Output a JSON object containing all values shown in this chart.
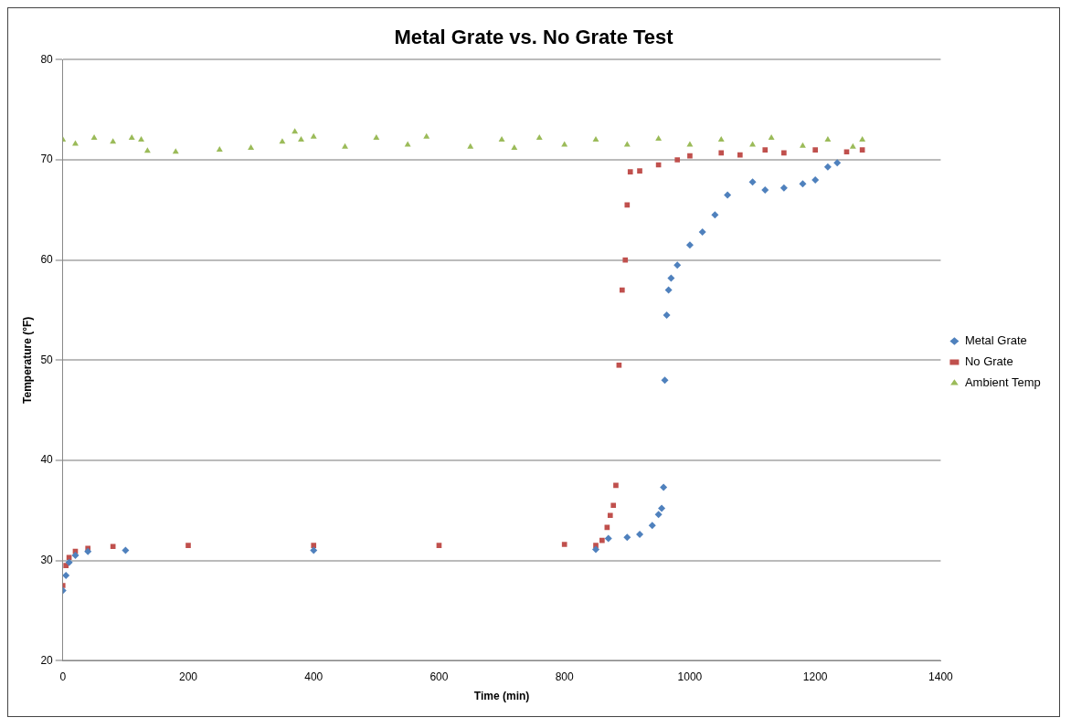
{
  "chart_data": {
    "type": "scatter",
    "title": "Metal Grate vs. No Grate Test",
    "xlabel": "Time (min)",
    "ylabel": "Temperature (°F)",
    "xlim": [
      0,
      1400
    ],
    "xticks": [
      0,
      200,
      400,
      600,
      800,
      1000,
      1200,
      1400
    ],
    "ylim": [
      20,
      80
    ],
    "yticks": [
      20,
      30,
      40,
      50,
      60,
      70,
      80
    ],
    "grid": "y",
    "legend": "right",
    "series": [
      {
        "name": "Metal Grate",
        "color": "#4f81bd",
        "marker": "diamond",
        "x": [
          0,
          5,
          10,
          20,
          40,
          100,
          400,
          850,
          870,
          900,
          920,
          940,
          950,
          955,
          958,
          960,
          963,
          966,
          970,
          980,
          1000,
          1020,
          1040,
          1060,
          1100,
          1120,
          1150,
          1180,
          1200,
          1220,
          1235
        ],
        "values": [
          27,
          28.5,
          29.8,
          30.5,
          30.9,
          31,
          31,
          31.1,
          32.2,
          32.3,
          32.6,
          33.5,
          34.6,
          35.2,
          37.3,
          48,
          54.5,
          57,
          58.2,
          59.5,
          61.5,
          62.8,
          64.5,
          66.5,
          67.8,
          67,
          67.2,
          67.6,
          68,
          69.3,
          69.7
        ]
      },
      {
        "name": "No Grate",
        "color": "#c0504d",
        "marker": "square",
        "x": [
          0,
          5,
          10,
          20,
          40,
          80,
          200,
          400,
          600,
          800,
          850,
          860,
          868,
          873,
          878,
          882,
          887,
          892,
          897,
          900,
          905,
          920,
          950,
          980,
          1000,
          1050,
          1080,
          1120,
          1150,
          1200,
          1250,
          1275
        ],
        "values": [
          27.5,
          29.5,
          30.3,
          30.9,
          31.2,
          31.4,
          31.5,
          31.5,
          31.5,
          31.6,
          31.5,
          32,
          33.3,
          34.5,
          35.5,
          37.5,
          49.5,
          57,
          60,
          65.5,
          68.8,
          68.9,
          69.5,
          70,
          70.4,
          70.7,
          70.5,
          71,
          70.7,
          71,
          70.8,
          71
        ]
      },
      {
        "name": "Ambient Temp",
        "color": "#9bbb59",
        "marker": "triangle",
        "x": [
          0,
          20,
          50,
          80,
          110,
          125,
          135,
          180,
          250,
          300,
          350,
          370,
          380,
          400,
          450,
          500,
          550,
          580,
          650,
          700,
          720,
          760,
          800,
          850,
          900,
          950,
          1000,
          1050,
          1100,
          1130,
          1180,
          1220,
          1260,
          1275
        ],
        "values": [
          72,
          71.6,
          72.2,
          71.8,
          72.2,
          72,
          70.9,
          70.8,
          71,
          71.2,
          71.8,
          72.8,
          72,
          72.3,
          71.3,
          72.2,
          71.5,
          72.3,
          71.3,
          72,
          71.2,
          72.2,
          71.5,
          72,
          71.5,
          72.1,
          71.5,
          72,
          71.5,
          72.2,
          71.4,
          72,
          71.3,
          72
        ]
      }
    ]
  }
}
